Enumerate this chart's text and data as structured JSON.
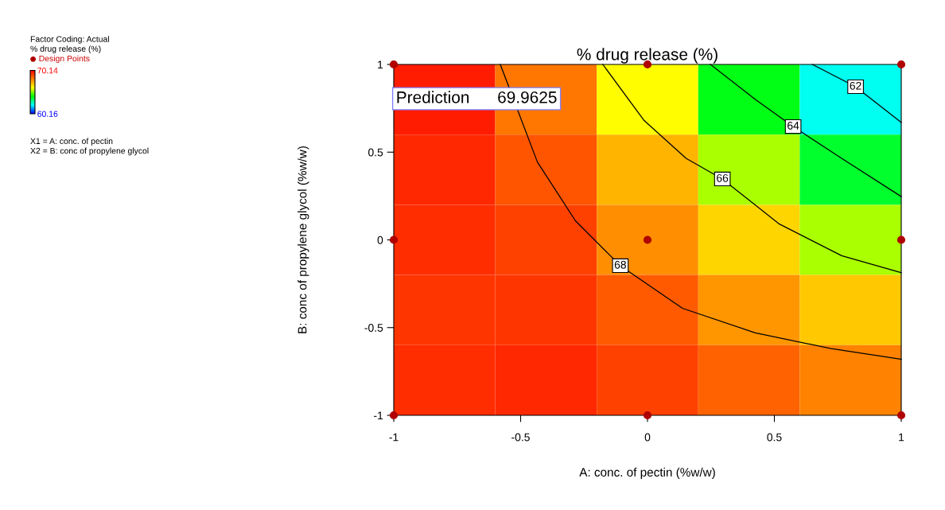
{
  "chart_data": {
    "type": "heatmap",
    "title": "% drug release (%)",
    "xlabel": "A: conc. of pectin (%w/w)",
    "ylabel": "B: conc of propylene glycol (%w/w)",
    "clabel": "% drug release (%)",
    "cells": [
      [
        69.7,
        68.3,
        66.2,
        64.0,
        62.3
      ],
      [
        69.5,
        68.8,
        67.3,
        65.5,
        63.8
      ],
      [
        69.4,
        69.1,
        67.9,
        66.8,
        65.5
      ],
      [
        69.3,
        69.3,
        68.7,
        67.8,
        67.0
      ],
      [
        69.4,
        69.5,
        69.1,
        68.6,
        68.1
      ]
    ],
    "clim": [
      60.16,
      70.14
    ],
    "cticks": [
      {
        "value": 70.14,
        "label": "70.14"
      },
      {
        "value": 60.16,
        "label": "60.16"
      }
    ],
    "xlim": [
      -1,
      1
    ],
    "ylim": [
      -1,
      1
    ],
    "xticks": [
      -1,
      -0.5,
      0,
      0.5,
      1
    ],
    "yticks": [
      -1,
      -0.5,
      0,
      0.5,
      1
    ],
    "series": [
      {
        "type": "line",
        "name": "68",
        "color": "#000000",
        "x": [
          -0.58,
          -0.434,
          -0.284,
          -0.107,
          0.138,
          0.425,
          0.724,
          1.0
        ],
        "values": [
          1,
          0.444,
          0.109,
          -0.147,
          -0.39,
          -0.53,
          -0.62,
          -0.68
        ]
      },
      {
        "type": "line",
        "name": "66",
        "color": "#000000",
        "x": [
          -0.176,
          -0.013,
          0.152,
          0.295,
          0.52,
          0.765,
          1.0
        ],
        "values": [
          1,
          0.68,
          0.465,
          0.347,
          0.09,
          -0.09,
          -0.187
        ]
      },
      {
        "type": "line",
        "name": "64",
        "color": "#000000",
        "x": [
          0.248,
          0.425,
          0.574,
          0.765,
          1.0
        ],
        "values": [
          1,
          0.8,
          0.646,
          0.465,
          0.247
        ]
      },
      {
        "type": "line",
        "name": "62",
        "color": "#000000",
        "x": [
          0.65,
          0.82,
          1.0
        ],
        "values": [
          1,
          0.873,
          0.67
        ]
      },
      {
        "type": "scatter",
        "name": "Design Points",
        "color": "#b00000",
        "marker": "circle",
        "x": [
          -1,
          0,
          1,
          -1,
          0,
          1,
          -1,
          0,
          1
        ],
        "values": [
          1,
          1,
          1,
          0,
          0,
          0,
          -1,
          -1,
          -1
        ]
      }
    ],
    "annotations": [
      {
        "text": "Prediction      69.9625",
        "x": -1,
        "y": 1
      },
      "Factor Coding: Actual",
      "X1 = A: conc. of pectin",
      "X2 = B: conc of propylene glycol"
    ],
    "legend": "left",
    "grid": false
  }
}
